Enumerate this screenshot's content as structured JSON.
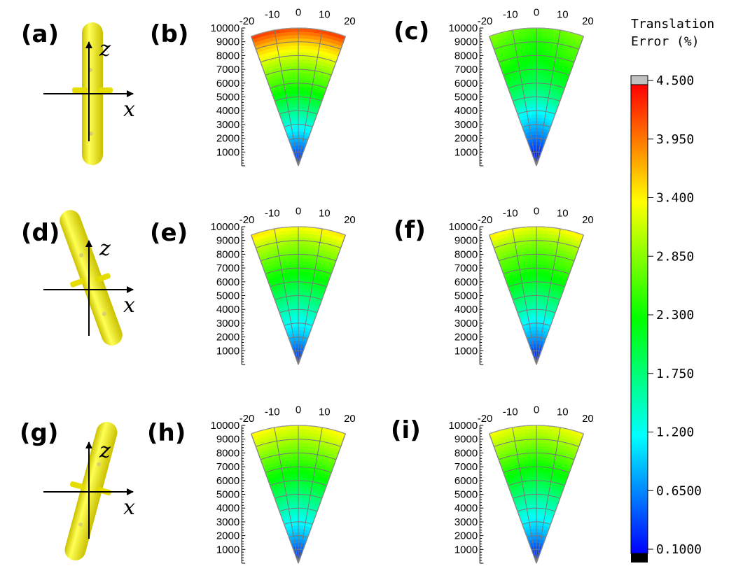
{
  "panels": [
    "(a)",
    "(b)",
    "(c)",
    "(d)",
    "(e)",
    "(f)",
    "(g)",
    "(h)",
    "(i)"
  ],
  "object_axes": {
    "x_label": "x",
    "z_label": "z"
  },
  "colorbar": {
    "title": [
      "Translation",
      "Error (%)"
    ],
    "ticks": [
      "4.500",
      "3.950",
      "3.400",
      "2.850",
      "2.300",
      "1.750",
      "1.200",
      "0.6500",
      "0.1000"
    ],
    "min": 0.1,
    "max": 4.5,
    "over_color": "#c0c0c0",
    "under_color": "#000000",
    "colormap": [
      "#0000ff",
      "#00ffff",
      "#00ff00",
      "#ffff00",
      "#ff0000"
    ]
  },
  "chart_data": [
    {
      "panel": "(b)",
      "type": "heatmap",
      "coordinate": "polar-sector",
      "angle_ticks": [
        "-20",
        "-10",
        "0",
        "10",
        "20"
      ],
      "angle_range_deg": [
        -20,
        20
      ],
      "radial_ticks": [
        "1000",
        "2000",
        "3000",
        "4000",
        "5000",
        "6000",
        "7000",
        "8000",
        "9000",
        "10000"
      ],
      "radial_range": [
        0,
        10000
      ],
      "error_by_radius": [
        [
          0,
          0.2
        ],
        [
          1000,
          0.5
        ],
        [
          2000,
          0.9
        ],
        [
          3000,
          1.3
        ],
        [
          4000,
          1.7
        ],
        [
          5000,
          2.1
        ],
        [
          6000,
          2.5
        ],
        [
          7000,
          2.8
        ],
        [
          8000,
          3.2
        ],
        [
          9000,
          3.6
        ],
        [
          10000,
          4.2
        ]
      ],
      "edge_increase": 0.1
    },
    {
      "panel": "(c)",
      "type": "heatmap",
      "coordinate": "polar-sector",
      "angle_ticks": [
        "-20",
        "-10",
        "0",
        "10",
        "20"
      ],
      "angle_range_deg": [
        -20,
        20
      ],
      "radial_ticks": [
        "1000",
        "2000",
        "3000",
        "4000",
        "5000",
        "6000",
        "7000",
        "8000",
        "9000",
        "10000"
      ],
      "radial_range": [
        0,
        10000
      ],
      "error_by_radius": [
        [
          0,
          0.2
        ],
        [
          1000,
          0.3
        ],
        [
          2000,
          0.6
        ],
        [
          3000,
          0.9
        ],
        [
          4000,
          1.2
        ],
        [
          5000,
          1.6
        ],
        [
          6000,
          1.9
        ],
        [
          7000,
          2.1
        ],
        [
          8000,
          2.3
        ],
        [
          9000,
          2.4
        ],
        [
          10000,
          2.6
        ]
      ],
      "edge_increase": 0.3
    },
    {
      "panel": "(e)",
      "type": "heatmap",
      "coordinate": "polar-sector",
      "angle_ticks": [
        "-20",
        "-10",
        "0",
        "10",
        "20"
      ],
      "angle_range_deg": [
        -20,
        20
      ],
      "radial_ticks": [
        "1000",
        "2000",
        "3000",
        "4000",
        "5000",
        "6000",
        "7000",
        "8000",
        "9000",
        "10000"
      ],
      "radial_range": [
        0,
        10000
      ],
      "error_by_radius": [
        [
          0,
          0.2
        ],
        [
          1000,
          0.5
        ],
        [
          2000,
          0.9
        ],
        [
          3000,
          1.2
        ],
        [
          4000,
          1.5
        ],
        [
          5000,
          1.8
        ],
        [
          6000,
          2.1
        ],
        [
          7000,
          2.4
        ],
        [
          8000,
          2.7
        ],
        [
          9000,
          3.0
        ],
        [
          10000,
          3.4
        ]
      ],
      "edge_increase": 0.15
    },
    {
      "panel": "(f)",
      "type": "heatmap",
      "coordinate": "polar-sector",
      "angle_ticks": [
        "-20",
        "-10",
        "0",
        "10",
        "20"
      ],
      "angle_range_deg": [
        -20,
        20
      ],
      "radial_ticks": [
        "1000",
        "2000",
        "3000",
        "4000",
        "5000",
        "6000",
        "7000",
        "8000",
        "9000",
        "10000"
      ],
      "radial_range": [
        0,
        10000
      ],
      "error_by_radius": [
        [
          0,
          0.2
        ],
        [
          1000,
          0.4
        ],
        [
          2000,
          0.8
        ],
        [
          3000,
          1.1
        ],
        [
          4000,
          1.5
        ],
        [
          5000,
          1.8
        ],
        [
          6000,
          2.1
        ],
        [
          7000,
          2.4
        ],
        [
          8000,
          2.6
        ],
        [
          9000,
          2.9
        ],
        [
          10000,
          3.3
        ]
      ],
      "edge_increase": 0.2
    },
    {
      "panel": "(h)",
      "type": "heatmap",
      "coordinate": "polar-sector",
      "angle_ticks": [
        "-20",
        "-10",
        "0",
        "10",
        "20"
      ],
      "angle_range_deg": [
        -20,
        20
      ],
      "radial_ticks": [
        "1000",
        "2000",
        "3000",
        "4000",
        "5000",
        "6000",
        "7000",
        "8000",
        "9000",
        "10000"
      ],
      "radial_range": [
        0,
        10000
      ],
      "error_by_radius": [
        [
          0,
          0.2
        ],
        [
          1000,
          0.5
        ],
        [
          2000,
          0.9
        ],
        [
          3000,
          1.2
        ],
        [
          4000,
          1.5
        ],
        [
          5000,
          1.8
        ],
        [
          6000,
          2.1
        ],
        [
          7000,
          2.4
        ],
        [
          8000,
          2.7
        ],
        [
          9000,
          3.0
        ],
        [
          10000,
          3.3
        ]
      ],
      "edge_increase": 0.15
    },
    {
      "panel": "(i)",
      "type": "heatmap",
      "coordinate": "polar-sector",
      "angle_ticks": [
        "-20",
        "-10",
        "0",
        "10",
        "20"
      ],
      "angle_range_deg": [
        -20,
        20
      ],
      "radial_ticks": [
        "1000",
        "2000",
        "3000",
        "4000",
        "5000",
        "6000",
        "7000",
        "8000",
        "9000",
        "10000"
      ],
      "radial_range": [
        0,
        10000
      ],
      "error_by_radius": [
        [
          0,
          0.2
        ],
        [
          1000,
          0.4
        ],
        [
          2000,
          0.8
        ],
        [
          3000,
          1.1
        ],
        [
          4000,
          1.4
        ],
        [
          5000,
          1.7
        ],
        [
          6000,
          2.0
        ],
        [
          7000,
          2.3
        ],
        [
          8000,
          2.6
        ],
        [
          9000,
          2.9
        ],
        [
          10000,
          3.2
        ]
      ],
      "edge_increase": 0.2
    }
  ]
}
